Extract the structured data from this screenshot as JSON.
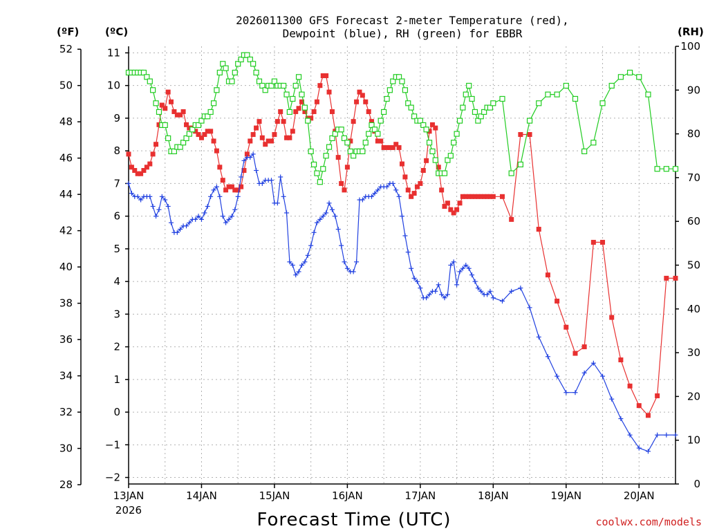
{
  "chart_data": {
    "type": "line",
    "title_line1": "2026011300 GFS Forecast 2-meter Temperature (red),",
    "title_line2": "Dewpoint (blue), RH (green) for EBBR",
    "unit_f": "(ºF)",
    "unit_c": "(ºC)",
    "unit_rh": "(RH)",
    "xlabel": "Forecast Time (UTC)",
    "credit": "coolwx.com/models",
    "x_start_label_year": "2026",
    "x_ticks": [
      {
        "day": 0,
        "label": "13JAN"
      },
      {
        "day": 1,
        "label": "14JAN"
      },
      {
        "day": 2,
        "label": "15JAN"
      },
      {
        "day": 3,
        "label": "16JAN"
      },
      {
        "day": 4,
        "label": "17JAN"
      },
      {
        "day": 5,
        "label": "18JAN"
      },
      {
        "day": 6,
        "label": "19JAN"
      },
      {
        "day": 7,
        "label": "20JAN"
      }
    ],
    "xlim_days": [
      0,
      7.5
    ],
    "ylim_c": [
      -2.2,
      11.2
    ],
    "ylim_rh": [
      0,
      100
    ],
    "ticks_c": [
      "-2",
      "-1",
      "0",
      "1",
      "2",
      "3",
      "4",
      "5",
      "6",
      "7",
      "8",
      "9",
      "10",
      "11"
    ],
    "ticks_f": [
      "28",
      "30",
      "32",
      "34",
      "36",
      "38",
      "40",
      "42",
      "44",
      "46",
      "48",
      "50",
      "52"
    ],
    "ticks_rh": [
      "0",
      "10",
      "20",
      "30",
      "40",
      "50",
      "60",
      "70",
      "80",
      "90",
      "100"
    ],
    "series": [
      {
        "name": "Temperature",
        "color": "#e83030",
        "marker": "filled-square",
        "x": [
          0,
          0.042,
          0.083,
          0.125,
          0.167,
          0.208,
          0.25,
          0.292,
          0.333,
          0.375,
          0.417,
          0.458,
          0.5,
          0.542,
          0.583,
          0.625,
          0.667,
          0.708,
          0.75,
          0.792,
          0.833,
          0.875,
          0.917,
          0.958,
          1.0,
          1.042,
          1.083,
          1.125,
          1.167,
          1.208,
          1.25,
          1.292,
          1.333,
          1.375,
          1.417,
          1.458,
          1.5,
          1.542,
          1.583,
          1.625,
          1.667,
          1.708,
          1.75,
          1.792,
          1.833,
          1.875,
          1.917,
          1.958,
          2.0,
          2.042,
          2.083,
          2.125,
          2.167,
          2.208,
          2.25,
          2.292,
          2.333,
          2.375,
          2.417,
          2.458,
          2.5,
          2.542,
          2.583,
          2.625,
          2.667,
          2.708,
          2.75,
          2.792,
          2.833,
          2.875,
          2.917,
          2.958,
          3.0,
          3.042,
          3.083,
          3.125,
          3.167,
          3.208,
          3.25,
          3.292,
          3.333,
          3.375,
          3.417,
          3.458,
          3.5,
          3.542,
          3.583,
          3.625,
          3.667,
          3.708,
          3.75,
          3.792,
          3.833,
          3.875,
          3.917,
          3.958,
          4.0,
          4.042,
          4.083,
          4.125,
          4.167,
          4.208,
          4.25,
          4.292,
          4.333,
          4.375,
          4.417,
          4.458,
          4.5,
          4.542,
          4.583,
          4.625,
          4.667,
          4.708,
          4.75,
          4.792,
          4.833,
          4.875,
          4.917,
          4.958,
          5.0,
          5.125,
          5.25,
          5.375,
          5.5,
          5.625,
          5.75,
          5.875,
          6.0,
          6.125,
          6.25,
          6.375,
          6.5,
          6.625,
          6.75,
          6.875,
          7.0,
          7.125,
          7.25,
          7.375,
          7.5
        ],
        "values": [
          7.9,
          7.5,
          7.4,
          7.3,
          7.3,
          7.4,
          7.5,
          7.6,
          7.9,
          8.2,
          8.8,
          9.4,
          9.3,
          9.8,
          9.5,
          9.2,
          9.1,
          9.1,
          9.2,
          8.8,
          8.7,
          8.7,
          8.6,
          8.5,
          8.4,
          8.5,
          8.6,
          8.6,
          8.3,
          8.0,
          7.5,
          7.1,
          6.8,
          6.9,
          6.9,
          6.8,
          6.8,
          6.9,
          7.4,
          7.9,
          8.3,
          8.5,
          8.7,
          8.9,
          8.4,
          8.2,
          8.3,
          8.3,
          8.5,
          8.9,
          9.2,
          8.9,
          8.4,
          8.4,
          8.6,
          9.2,
          9.3,
          9.5,
          9.2,
          9.0,
          9.0,
          9.2,
          9.5,
          10.0,
          10.3,
          10.3,
          9.8,
          9.2,
          8.6,
          7.8,
          7.0,
          6.8,
          7.5,
          8.3,
          8.9,
          9.5,
          9.8,
          9.7,
          9.5,
          9.2,
          8.9,
          8.6,
          8.3,
          8.3,
          8.1,
          8.1,
          8.1,
          8.1,
          8.2,
          8.1,
          7.6,
          7.2,
          6.8,
          6.6,
          6.7,
          6.9,
          7.0,
          7.4,
          7.7,
          8.6,
          8.8,
          8.7,
          7.5,
          6.8,
          6.3,
          6.4,
          6.2,
          6.1,
          6.2,
          6.4,
          6.6,
          6.6,
          6.6,
          6.6,
          6.6,
          6.6,
          6.6,
          6.6,
          6.6,
          6.6,
          6.6,
          6.6,
          5.9,
          8.5,
          8.5,
          5.6,
          4.2,
          3.4,
          2.6,
          1.8,
          2.0,
          5.2,
          5.2,
          2.9,
          1.6,
          0.8,
          0.2,
          -0.1,
          0.5,
          4.1,
          4.1
        ],
        "values_note": "Temperature in °C"
      },
      {
        "name": "Dewpoint",
        "color": "#2040e0",
        "marker": "plus",
        "x": [
          0,
          0.042,
          0.083,
          0.125,
          0.167,
          0.208,
          0.25,
          0.292,
          0.333,
          0.375,
          0.417,
          0.458,
          0.5,
          0.542,
          0.583,
          0.625,
          0.667,
          0.708,
          0.75,
          0.792,
          0.833,
          0.875,
          0.917,
          0.958,
          1.0,
          1.042,
          1.083,
          1.125,
          1.167,
          1.208,
          1.25,
          1.292,
          1.333,
          1.375,
          1.417,
          1.458,
          1.5,
          1.542,
          1.583,
          1.625,
          1.667,
          1.708,
          1.75,
          1.792,
          1.833,
          1.875,
          1.917,
          1.958,
          2.0,
          2.042,
          2.083,
          2.125,
          2.167,
          2.208,
          2.25,
          2.292,
          2.333,
          2.375,
          2.417,
          2.458,
          2.5,
          2.542,
          2.583,
          2.625,
          2.667,
          2.708,
          2.75,
          2.792,
          2.833,
          2.875,
          2.917,
          2.958,
          3.0,
          3.042,
          3.083,
          3.125,
          3.167,
          3.208,
          3.25,
          3.292,
          3.333,
          3.375,
          3.417,
          3.458,
          3.5,
          3.542,
          3.583,
          3.625,
          3.667,
          3.708,
          3.75,
          3.792,
          3.833,
          3.875,
          3.917,
          3.958,
          4.0,
          4.042,
          4.083,
          4.125,
          4.167,
          4.208,
          4.25,
          4.292,
          4.333,
          4.375,
          4.417,
          4.458,
          4.5,
          4.542,
          4.583,
          4.625,
          4.667,
          4.708,
          4.75,
          4.792,
          4.833,
          4.875,
          4.917,
          4.958,
          5.0,
          5.125,
          5.25,
          5.375,
          5.5,
          5.625,
          5.75,
          5.875,
          6.0,
          6.125,
          6.25,
          6.375,
          6.5,
          6.625,
          6.75,
          6.875,
          7.0,
          7.125,
          7.25,
          7.375,
          7.5
        ],
        "values": [
          7.0,
          6.7,
          6.6,
          6.6,
          6.5,
          6.6,
          6.6,
          6.6,
          6.3,
          6.0,
          6.2,
          6.6,
          6.5,
          6.3,
          5.8,
          5.5,
          5.5,
          5.6,
          5.7,
          5.7,
          5.8,
          5.9,
          5.9,
          6.0,
          5.9,
          6.1,
          6.3,
          6.6,
          6.8,
          6.9,
          6.6,
          6.0,
          5.8,
          5.9,
          6.0,
          6.2,
          6.6,
          7.2,
          7.7,
          7.8,
          7.8,
          7.9,
          7.4,
          7.0,
          7.0,
          7.1,
          7.1,
          7.1,
          6.4,
          6.4,
          7.2,
          6.6,
          6.1,
          4.6,
          4.5,
          4.2,
          4.3,
          4.5,
          4.6,
          4.8,
          5.1,
          5.5,
          5.8,
          5.9,
          6.0,
          6.1,
          6.4,
          6.2,
          6.0,
          5.6,
          5.1,
          4.6,
          4.4,
          4.3,
          4.3,
          4.6,
          6.5,
          6.5,
          6.6,
          6.6,
          6.6,
          6.7,
          6.8,
          6.9,
          6.9,
          6.9,
          7.0,
          7.0,
          6.8,
          6.6,
          6.0,
          5.4,
          4.9,
          4.4,
          4.1,
          4.0,
          3.8,
          3.5,
          3.5,
          3.6,
          3.7,
          3.7,
          3.9,
          3.6,
          3.5,
          3.6,
          4.5,
          4.6,
          3.9,
          4.3,
          4.4,
          4.5,
          4.4,
          4.2,
          4.0,
          3.8,
          3.7,
          3.6,
          3.6,
          3.7,
          3.5,
          3.4,
          3.7,
          3.8,
          3.2,
          2.3,
          1.7,
          1.1,
          0.6,
          0.6,
          1.2,
          1.5,
          1.1,
          0.4,
          -0.2,
          -0.7,
          -1.1,
          -1.2,
          -0.7,
          -0.7,
          -0.7
        ],
        "values_note": "Dewpoint in °C"
      },
      {
        "name": "RH",
        "color": "#20cc20",
        "marker": "open-square",
        "axis": "rh",
        "x": [
          0,
          0.042,
          0.083,
          0.125,
          0.167,
          0.208,
          0.25,
          0.292,
          0.333,
          0.375,
          0.417,
          0.458,
          0.5,
          0.542,
          0.583,
          0.625,
          0.667,
          0.708,
          0.75,
          0.792,
          0.833,
          0.875,
          0.917,
          0.958,
          1.0,
          1.042,
          1.083,
          1.125,
          1.167,
          1.208,
          1.25,
          1.292,
          1.333,
          1.375,
          1.417,
          1.458,
          1.5,
          1.542,
          1.583,
          1.625,
          1.667,
          1.708,
          1.75,
          1.792,
          1.833,
          1.875,
          1.917,
          1.958,
          2.0,
          2.042,
          2.083,
          2.125,
          2.167,
          2.208,
          2.25,
          2.292,
          2.333,
          2.375,
          2.417,
          2.458,
          2.5,
          2.542,
          2.583,
          2.625,
          2.667,
          2.708,
          2.75,
          2.792,
          2.833,
          2.875,
          2.917,
          2.958,
          3.0,
          3.042,
          3.083,
          3.125,
          3.167,
          3.208,
          3.25,
          3.292,
          3.333,
          3.375,
          3.417,
          3.458,
          3.5,
          3.542,
          3.583,
          3.625,
          3.667,
          3.708,
          3.75,
          3.792,
          3.833,
          3.875,
          3.917,
          3.958,
          4.0,
          4.042,
          4.083,
          4.125,
          4.167,
          4.208,
          4.25,
          4.292,
          4.333,
          4.375,
          4.417,
          4.458,
          4.5,
          4.542,
          4.583,
          4.625,
          4.667,
          4.708,
          4.75,
          4.792,
          4.833,
          4.875,
          4.917,
          4.958,
          5.0,
          5.125,
          5.25,
          5.375,
          5.5,
          5.625,
          5.75,
          5.875,
          6.0,
          6.125,
          6.25,
          6.375,
          6.5,
          6.625,
          6.75,
          6.875,
          7.0,
          7.125,
          7.25,
          7.375,
          7.5
        ],
        "values": [
          94,
          94,
          94,
          94,
          94,
          94,
          93,
          92,
          90,
          87,
          85,
          82,
          82,
          79,
          76,
          76,
          77,
          77,
          78,
          79,
          80,
          81,
          82,
          82,
          83,
          84,
          84,
          85,
          87,
          90,
          94,
          96,
          95,
          92,
          92,
          94,
          96,
          97,
          98,
          98,
          97,
          96,
          94,
          92,
          91,
          90,
          91,
          91,
          92,
          91,
          91,
          91,
          89,
          85,
          88,
          91,
          93,
          89,
          86,
          83,
          76,
          73,
          71,
          69,
          72,
          75,
          77,
          79,
          80,
          81,
          81,
          79,
          78,
          76,
          75,
          76,
          76,
          76,
          78,
          80,
          82,
          81,
          80,
          83,
          85,
          88,
          90,
          92,
          93,
          93,
          92,
          90,
          87,
          86,
          84,
          83,
          83,
          82,
          81,
          78,
          76,
          74,
          71,
          71,
          71,
          74,
          75,
          78,
          80,
          83,
          86,
          89,
          91,
          88,
          85,
          83,
          84,
          85,
          86,
          86,
          87,
          88,
          71,
          73,
          83,
          87,
          89,
          89,
          91,
          88,
          76,
          78,
          87,
          91,
          93,
          94,
          93,
          89,
          72,
          72,
          72
        ],
        "values_note": "Relative humidity in %"
      }
    ]
  }
}
